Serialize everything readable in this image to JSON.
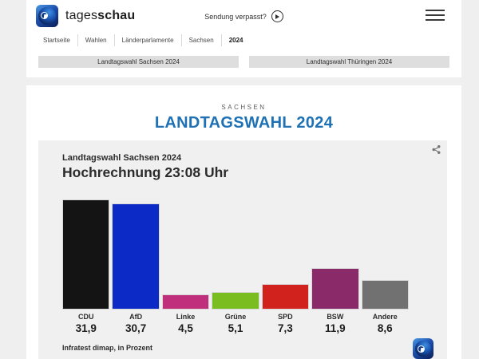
{
  "header": {
    "brand": {
      "normal": "tages",
      "bold": "schau"
    },
    "sendung_verpasst_label": "Sendung verpasst?",
    "breadcrumb": [
      "Startseite",
      "Wahlen",
      "Länderparlamente",
      "Sachsen",
      "2024"
    ],
    "tabs": [
      {
        "label": "Landtagswahl Sachsen 2024"
      },
      {
        "label": "Landtagswahl Thüringen 2024"
      }
    ]
  },
  "main": {
    "kicker": "SACHSEN",
    "heading": "LANDTAGSWAHL 2024"
  },
  "colors": {
    "heading_blue": "#1d71b4",
    "page_background": "#efefef",
    "chart_card_background": "#f0f0f0"
  },
  "chart_data": {
    "type": "bar",
    "subtitle": "Landtagswahl Sachsen 2024",
    "title": "Hochrechnung 23:08 Uhr",
    "source_note": "Infratest dimap, in Prozent",
    "categories": [
      "CDU",
      "AfD",
      "Linke",
      "Grüne",
      "SPD",
      "BSW",
      "Andere"
    ],
    "values": [
      31.9,
      30.7,
      4.5,
      5.1,
      7.3,
      11.9,
      8.6
    ],
    "value_labels": [
      "31,9",
      "30,7",
      "4,5",
      "5,1",
      "7,3",
      "11,9",
      "8,6"
    ],
    "colors": [
      "#141414",
      "#0b2ac6",
      "#c02f7b",
      "#79bd21",
      "#d2221e",
      "#8a2a68",
      "#717171"
    ],
    "ylim": [
      0,
      33
    ],
    "grid": false,
    "legend": false
  }
}
